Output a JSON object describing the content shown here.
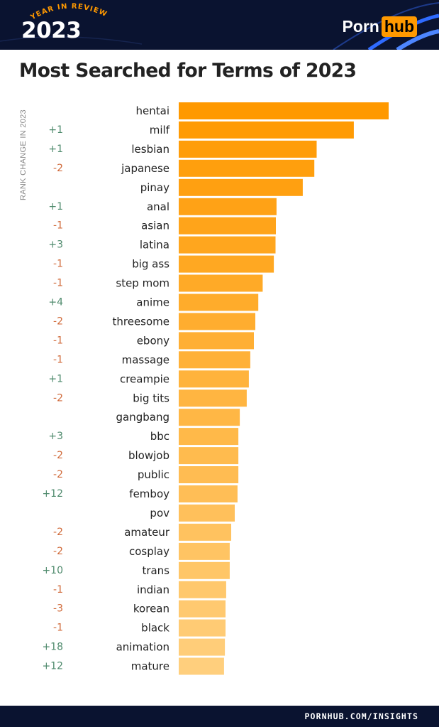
{
  "header": {
    "year_in_review": "YEAR IN REVIEW",
    "year": "2023",
    "brand_part1": "Porn",
    "brand_part2": "hub"
  },
  "footer": {
    "url": "PORNHUB.COM/INSIGHTS"
  },
  "colors": {
    "navy": "#0a1330",
    "accent_blue": "#2f6bff",
    "brand_orange": "#ff9900",
    "bar_start": "#ff9900",
    "bar_end": "#ffcf7d",
    "rank_up": "#4e8a6c",
    "rank_down": "#d06a3a"
  },
  "chart_data": {
    "type": "bar",
    "orientation": "horizontal",
    "title": "Most Searched for Terms of 2023",
    "rank_change_label": "RANK CHANGE IN 2023",
    "xlim": [
      0,
      100
    ],
    "grid": false,
    "categories": [
      "hentai",
      "milf",
      "lesbian",
      "japanese",
      "pinay",
      "anal",
      "asian",
      "latina",
      "big ass",
      "step mom",
      "anime",
      "threesome",
      "ebony",
      "massage",
      "creampie",
      "big tits",
      "gangbang",
      "bbc",
      "blowjob",
      "public",
      "femboy",
      "pov",
      "amateur",
      "cosplay",
      "trans",
      "indian",
      "korean",
      "black",
      "animation",
      "mature"
    ],
    "values": [
      100,
      83.4,
      65.7,
      64.6,
      59.1,
      46.6,
      46.3,
      46.1,
      45.3,
      40.0,
      37.9,
      36.5,
      35.8,
      34.1,
      33.4,
      32.4,
      29.1,
      28.4,
      28.4,
      28.4,
      28.0,
      26.7,
      25.0,
      24.3,
      24.3,
      22.6,
      22.3,
      22.3,
      22.0,
      21.6
    ],
    "rank_change": [
      "",
      "+1",
      "+1",
      "-2",
      "",
      "+1",
      "-1",
      "+3",
      "-1",
      "-1",
      "+4",
      "-2",
      "-1",
      "-1",
      "+1",
      "-2",
      "",
      "+3",
      "-2",
      "-2",
      "+12",
      "",
      "-2",
      "-2",
      "+10",
      "-1",
      "-3",
      "-1",
      "+18",
      "+12"
    ]
  }
}
